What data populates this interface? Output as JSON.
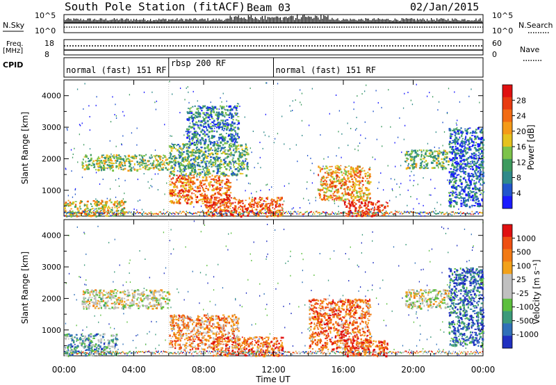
{
  "header": {
    "station": "South Pole Station (fitACF)",
    "beam": "Beam 03",
    "date": "02/Jan/2015"
  },
  "top_panels": {
    "nsky_label": "N.Sky",
    "nsky_ticks": [
      "10^5",
      "10^0"
    ],
    "nsearch_label": "N.Search",
    "nsearch_ticks": [
      "10^5",
      "10^0"
    ],
    "freq_label": "Freq.",
    "freq_unit": "[MHz]",
    "freq_ticks": [
      "18",
      "8"
    ],
    "nave_label": "Nave",
    "nave_ticks": [
      "60",
      "0"
    ],
    "cpid_label": "CPID"
  },
  "cpid_segments": [
    {
      "label": "normal (fast) 151 RF",
      "start_hour": 0,
      "end_hour": 6.0
    },
    {
      "label": "rbsp 200 RF",
      "start_hour": 6.0,
      "end_hour": 12.0
    },
    {
      "label": "normal (fast) 151 RF",
      "start_hour": 12.0,
      "end_hour": 24.0
    }
  ],
  "chart_data": [
    {
      "type": "heatmap",
      "ylabel": "Slant Range [km]",
      "xlabel": "",
      "x_range_hours": [
        0,
        24
      ],
      "ylim": [
        180,
        4500
      ],
      "yticks": [
        1000,
        2000,
        3000,
        4000
      ],
      "colorbar": {
        "label": "Power [dB]",
        "ticks": [
          "4",
          "8",
          "12",
          "16",
          "20",
          "24",
          "28"
        ],
        "colors": [
          "#1a1aff",
          "#2255cc",
          "#2f8a8a",
          "#3d9a5e",
          "#7cc34a",
          "#e5c21e",
          "#f49a18",
          "#f26b13",
          "#e83a10",
          "#e01010"
        ]
      },
      "echo_regions": [
        {
          "hours": [
            0.0,
            3.5
          ],
          "range_km": [
            200,
            700
          ],
          "level": 0.55
        },
        {
          "hours": [
            1.0,
            6.0
          ],
          "range_km": [
            1650,
            2150
          ],
          "level": 0.45
        },
        {
          "hours": [
            6.0,
            9.5
          ],
          "range_km": [
            600,
            1500
          ],
          "level": 0.75
        },
        {
          "hours": [
            6.0,
            10.5
          ],
          "range_km": [
            1500,
            2500
          ],
          "level": 0.35
        },
        {
          "hours": [
            7.0,
            10.0
          ],
          "range_km": [
            2500,
            3700
          ],
          "level": 0.25
        },
        {
          "hours": [
            8.0,
            12.5
          ],
          "range_km": [
            200,
            800
          ],
          "level": 0.8
        },
        {
          "hours": [
            14.5,
            17.5
          ],
          "range_km": [
            700,
            1800
          ],
          "level": 0.65
        },
        {
          "hours": [
            16.0,
            18.5
          ],
          "range_km": [
            200,
            700
          ],
          "level": 0.9
        },
        {
          "hours": [
            19.5,
            22.0
          ],
          "range_km": [
            1700,
            2300
          ],
          "level": 0.4
        },
        {
          "hours": [
            22.0,
            24.0
          ],
          "range_km": [
            500,
            3000
          ],
          "level": 0.2
        }
      ]
    },
    {
      "type": "heatmap",
      "ylabel": "Slant Range [km]",
      "xlabel": "Time UT",
      "x_range_hours": [
        0,
        24
      ],
      "ylim": [
        180,
        4500
      ],
      "yticks": [
        1000,
        2000,
        3000,
        4000
      ],
      "xticks": [
        "00:00",
        "04:00",
        "08:00",
        "12:00",
        "16:00",
        "20:00",
        "00:00"
      ],
      "colorbar": {
        "label": "Velocity [m s⁻¹]",
        "ticks": [
          "1000",
          "500",
          "100",
          "25",
          "-25",
          "-100",
          "-500",
          "-1000"
        ],
        "colors": [
          "#2030c0",
          "#3070b8",
          "#3c9a7a",
          "#5cbf3e",
          "#c0c0c0",
          "#c0c0c0",
          "#f2a11a",
          "#f27a14",
          "#ee4f12",
          "#e01010"
        ]
      },
      "echo_regions": [
        {
          "hours": [
            0.0,
            3.0
          ],
          "range_km": [
            200,
            900
          ],
          "level": 0.3
        },
        {
          "hours": [
            1.0,
            6.0
          ],
          "range_km": [
            1700,
            2300
          ],
          "level": 0.5
        },
        {
          "hours": [
            6.0,
            10.0
          ],
          "range_km": [
            400,
            1500
          ],
          "level": 0.72
        },
        {
          "hours": [
            8.5,
            12.5
          ],
          "range_km": [
            200,
            800
          ],
          "level": 0.8
        },
        {
          "hours": [
            14.0,
            17.5
          ],
          "range_km": [
            400,
            2000
          ],
          "level": 0.78
        },
        {
          "hours": [
            16.0,
            18.5
          ],
          "range_km": [
            200,
            700
          ],
          "level": 0.85
        },
        {
          "hours": [
            19.5,
            22.0
          ],
          "range_km": [
            1700,
            2300
          ],
          "level": 0.5
        },
        {
          "hours": [
            22.0,
            24.0
          ],
          "range_km": [
            500,
            3000
          ],
          "level": 0.15
        }
      ]
    }
  ]
}
